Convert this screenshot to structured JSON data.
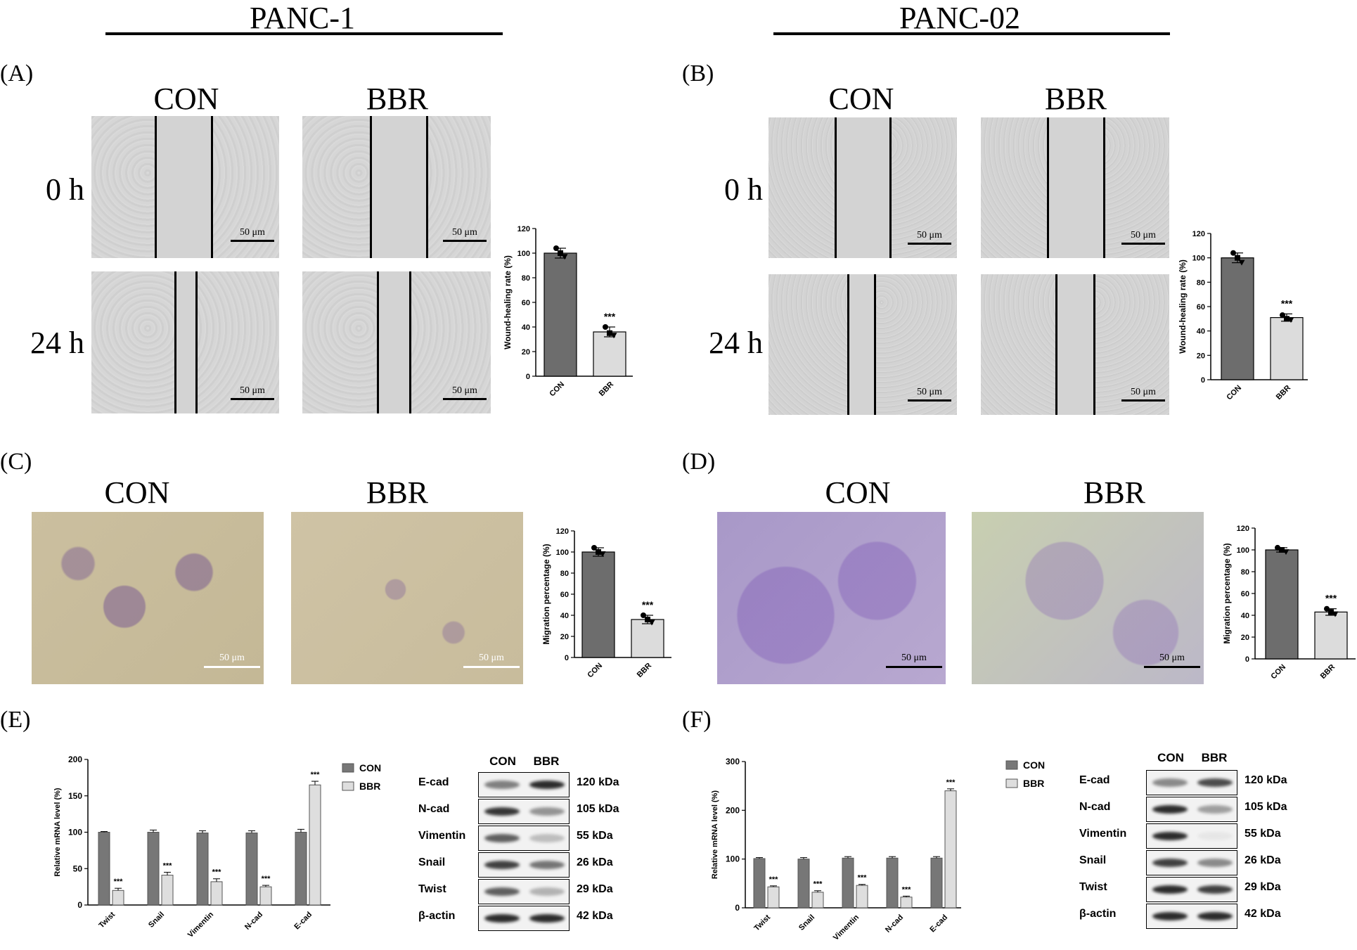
{
  "headers": {
    "left": "PANC-1",
    "right": "PANC-02"
  },
  "panel_labels": {
    "a": "(A)",
    "b": "(B)",
    "c": "(C)",
    "d": "(D)",
    "e": "(E)",
    "f": "(F)"
  },
  "conditions": {
    "con": "CON",
    "bbr": "BBR"
  },
  "timepoints": {
    "t0": "0 h",
    "t24": "24 h"
  },
  "scale_bar_label": "50 μm",
  "wb": {
    "columns": [
      "CON",
      "BBR"
    ],
    "proteins": [
      "E-cad",
      "N-cad",
      "Vimentin",
      "Snail",
      "Twist",
      "β-actin"
    ],
    "sizes": [
      "120 kDa",
      "105 kDa",
      "55 kDa",
      "26 kDa",
      "29 kDa",
      "42 kDa"
    ],
    "band_intensity_E": [
      [
        0.55,
        0.95
      ],
      [
        0.9,
        0.45
      ],
      [
        0.7,
        0.25
      ],
      [
        0.85,
        0.6
      ],
      [
        0.7,
        0.3
      ],
      [
        0.95,
        0.95
      ]
    ],
    "band_intensity_F": [
      [
        0.5,
        0.8
      ],
      [
        0.95,
        0.4
      ],
      [
        0.95,
        0.05
      ],
      [
        0.85,
        0.5
      ],
      [
        0.95,
        0.85
      ],
      [
        0.95,
        0.95
      ]
    ]
  },
  "chart_data": [
    {
      "id": "A",
      "type": "bar",
      "categories": [
        "CON",
        "BBR"
      ],
      "values": [
        100,
        36
      ],
      "errors": [
        4,
        4
      ],
      "points": [
        [
          104,
          100,
          97
        ],
        [
          40,
          35,
          33
        ]
      ],
      "significance": [
        "",
        "***"
      ],
      "ylabel": "Wound-healing rate (%)",
      "ylim": [
        0,
        120
      ],
      "yticks": [
        0,
        20,
        40,
        60,
        80,
        100,
        120
      ]
    },
    {
      "id": "B",
      "type": "bar",
      "categories": [
        "CON",
        "BBR"
      ],
      "values": [
        100,
        51
      ],
      "errors": [
        4,
        3
      ],
      "points": [
        [
          104,
          100,
          96
        ],
        [
          53,
          50,
          49
        ]
      ],
      "significance": [
        "",
        "***"
      ],
      "ylabel": "Wound-healing rate (%)",
      "ylim": [
        0,
        120
      ],
      "yticks": [
        0,
        20,
        40,
        60,
        80,
        100,
        120
      ]
    },
    {
      "id": "C",
      "type": "bar",
      "categories": [
        "CON",
        "BBR"
      ],
      "values": [
        100,
        36
      ],
      "errors": [
        4,
        4
      ],
      "points": [
        [
          104,
          100,
          98
        ],
        [
          40,
          36,
          33
        ]
      ],
      "significance": [
        "",
        "***"
      ],
      "ylabel": "Migration percentage (%)",
      "ylim": [
        0,
        120
      ],
      "yticks": [
        0,
        20,
        40,
        60,
        80,
        100,
        120
      ]
    },
    {
      "id": "D",
      "type": "bar",
      "categories": [
        "CON",
        "BBR"
      ],
      "values": [
        100,
        43
      ],
      "errors": [
        2,
        3
      ],
      "points": [
        [
          102,
          100,
          98
        ],
        [
          46,
          43,
          41
        ]
      ],
      "significance": [
        "",
        "***"
      ],
      "ylabel": "Migration percentage (%)",
      "ylim": [
        0,
        120
      ],
      "yticks": [
        0,
        20,
        40,
        60,
        80,
        100,
        120
      ]
    },
    {
      "id": "E",
      "type": "bar",
      "categories": [
        "Twist",
        "Snail",
        "Vimentin",
        "N-cad",
        "E-cad"
      ],
      "series": [
        {
          "name": "CON",
          "values": [
            100,
            100,
            99,
            99,
            100
          ],
          "errors": [
            1,
            3,
            3,
            3,
            4
          ]
        },
        {
          "name": "BBR",
          "values": [
            20,
            41,
            32,
            25,
            165
          ],
          "errors": [
            3,
            4,
            4,
            2,
            5
          ]
        }
      ],
      "significance": [
        "***",
        "***",
        "***",
        "***",
        "***"
      ],
      "ylabel": "Relative mRNA level (%)",
      "ylim": [
        0,
        200
      ],
      "yticks": [
        0,
        50,
        100,
        150,
        200
      ]
    },
    {
      "id": "F",
      "type": "bar",
      "categories": [
        "Twist",
        "Snail",
        "Vimentin",
        "N-cad",
        "E-cad"
      ],
      "series": [
        {
          "name": "CON",
          "values": [
            101,
            100,
            102,
            102,
            102
          ],
          "errors": [
            2,
            3,
            3,
            3,
            3
          ]
        },
        {
          "name": "BBR",
          "values": [
            43,
            32,
            46,
            22,
            240
          ],
          "errors": [
            2,
            3,
            2,
            2,
            4
          ]
        }
      ],
      "significance": [
        "***",
        "***",
        "***",
        "***",
        "***"
      ],
      "ylabel": "Relative mRNA level (%)",
      "ylim": [
        0,
        300
      ],
      "yticks": [
        0,
        100,
        200,
        300
      ]
    }
  ]
}
